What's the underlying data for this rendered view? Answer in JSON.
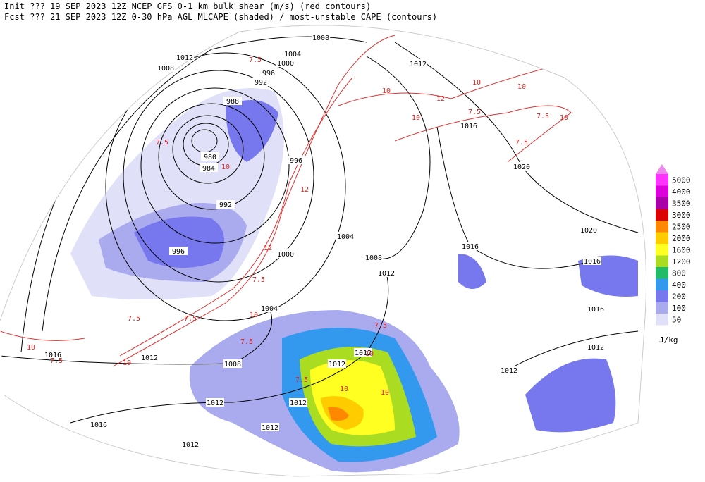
{
  "header": {
    "line1": "Init  ??? 19 SEP 2023 12Z  NCEP GFS 0-1 km bulk shear (m/s) (red contours)",
    "line2": "Fcst ??? 21 SEP 2023 12Z  0-30 hPa AGL MLCAPE (shaded) / most-unstable CAPE (contours)"
  },
  "legend": {
    "unit": "J/kg",
    "levels": [
      {
        "label": "5000",
        "color": "#ff33ff"
      },
      {
        "label": "4000",
        "color": "#dd00dd"
      },
      {
        "label": "3500",
        "color": "#aa00aa"
      },
      {
        "label": "3000",
        "color": "#dd0000"
      },
      {
        "label": "2500",
        "color": "#ff8800"
      },
      {
        "label": "2000",
        "color": "#ffcc00"
      },
      {
        "label": "1600",
        "color": "#ffff22"
      },
      {
        "label": "1200",
        "color": "#aadd22"
      },
      {
        "label": "800",
        "color": "#22bb66"
      },
      {
        "label": "400",
        "color": "#3399ee"
      },
      {
        "label": "200",
        "color": "#7777ee"
      },
      {
        "label": "100",
        "color": "#aaaaee"
      },
      {
        "label": "50",
        "color": "#e0e0f8"
      }
    ]
  },
  "isobar_labels": [
    "1008",
    "1012",
    "1008",
    "1004",
    "1000",
    "996",
    "992",
    "988",
    "980",
    "984",
    "992",
    "996",
    "996",
    "1004",
    "1000",
    "1008",
    "1012",
    "1004",
    "1008",
    "1016",
    "1012",
    "1012",
    "1016",
    "1012",
    "1012",
    "1012",
    "1012",
    "1012",
    "1016",
    "1020",
    "1020",
    "1016",
    "1016",
    "1016",
    "1012",
    "1012",
    "1012"
  ],
  "shear_labels": [
    "7.5",
    "10",
    "12",
    "10",
    "7.5",
    "10",
    "12",
    "10",
    "7.5",
    "10",
    "7.5",
    "10",
    "7.5",
    "12",
    "7.5",
    "10",
    "7.5",
    "10",
    "7.5",
    "10",
    "7.5",
    "7.5",
    "10",
    "7.5",
    "10",
    "7.5",
    "10"
  ]
}
